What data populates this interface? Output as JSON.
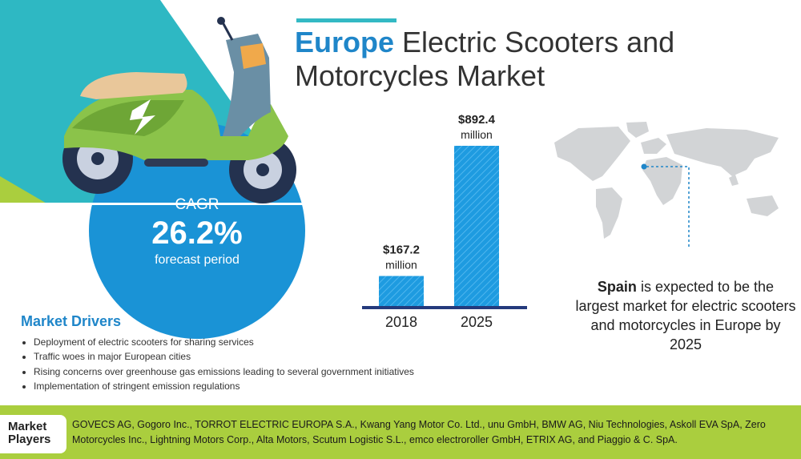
{
  "title": {
    "highlight": "Europe",
    "rest": "Electric Scooters and Motorcycles Market"
  },
  "cagr": {
    "label": "CAGR",
    "value": "26.2%",
    "sublabel": "forecast period"
  },
  "chart_data": {
    "type": "bar",
    "categories": [
      "2018",
      "2025"
    ],
    "values": [
      167.2,
      892.4
    ],
    "data_labels": [
      {
        "amount": "$167.2",
        "unit": "million"
      },
      {
        "amount": "$892.4",
        "unit": "million"
      }
    ],
    "title": "",
    "xlabel": "",
    "ylabel": "",
    "ylim": [
      0,
      892.4
    ],
    "colors": {
      "bar": "#1e9be0",
      "axis": "#243a7c"
    }
  },
  "insight": {
    "bold": "Spain",
    "text": "is expected to be the largest market for electric scooters and motorcycles in Europe by 2025"
  },
  "drivers": {
    "heading": "Market Drivers",
    "items": [
      "Deployment of electric scooters for sharing services",
      "Traffic woes in major European cities",
      "Rising concerns over greenhouse gas emissions leading to several government initiatives",
      "Implementation of stringent emission regulations"
    ]
  },
  "footer": {
    "label_line1": "Market",
    "label_line2": "Players",
    "players": "GOVECS AG, Gogoro Inc., TORROT ELECTRIC EUROPA S.A., Kwang Yang Motor Co. Ltd., unu GmbH, BMW AG, Niu Technologies, Askoll EVA SpA, Zero Motorcycles Inc., Lightning Motors Corp., Alta Motors, Scutum Logistic S.L., emco electroroller GmbH, ETRIX AG, and Piaggio & C. SpA."
  },
  "colors": {
    "accent": "#1f86c9",
    "teal": "#33b9c4",
    "green": "#aace3e",
    "circle": "#1a93d6"
  }
}
